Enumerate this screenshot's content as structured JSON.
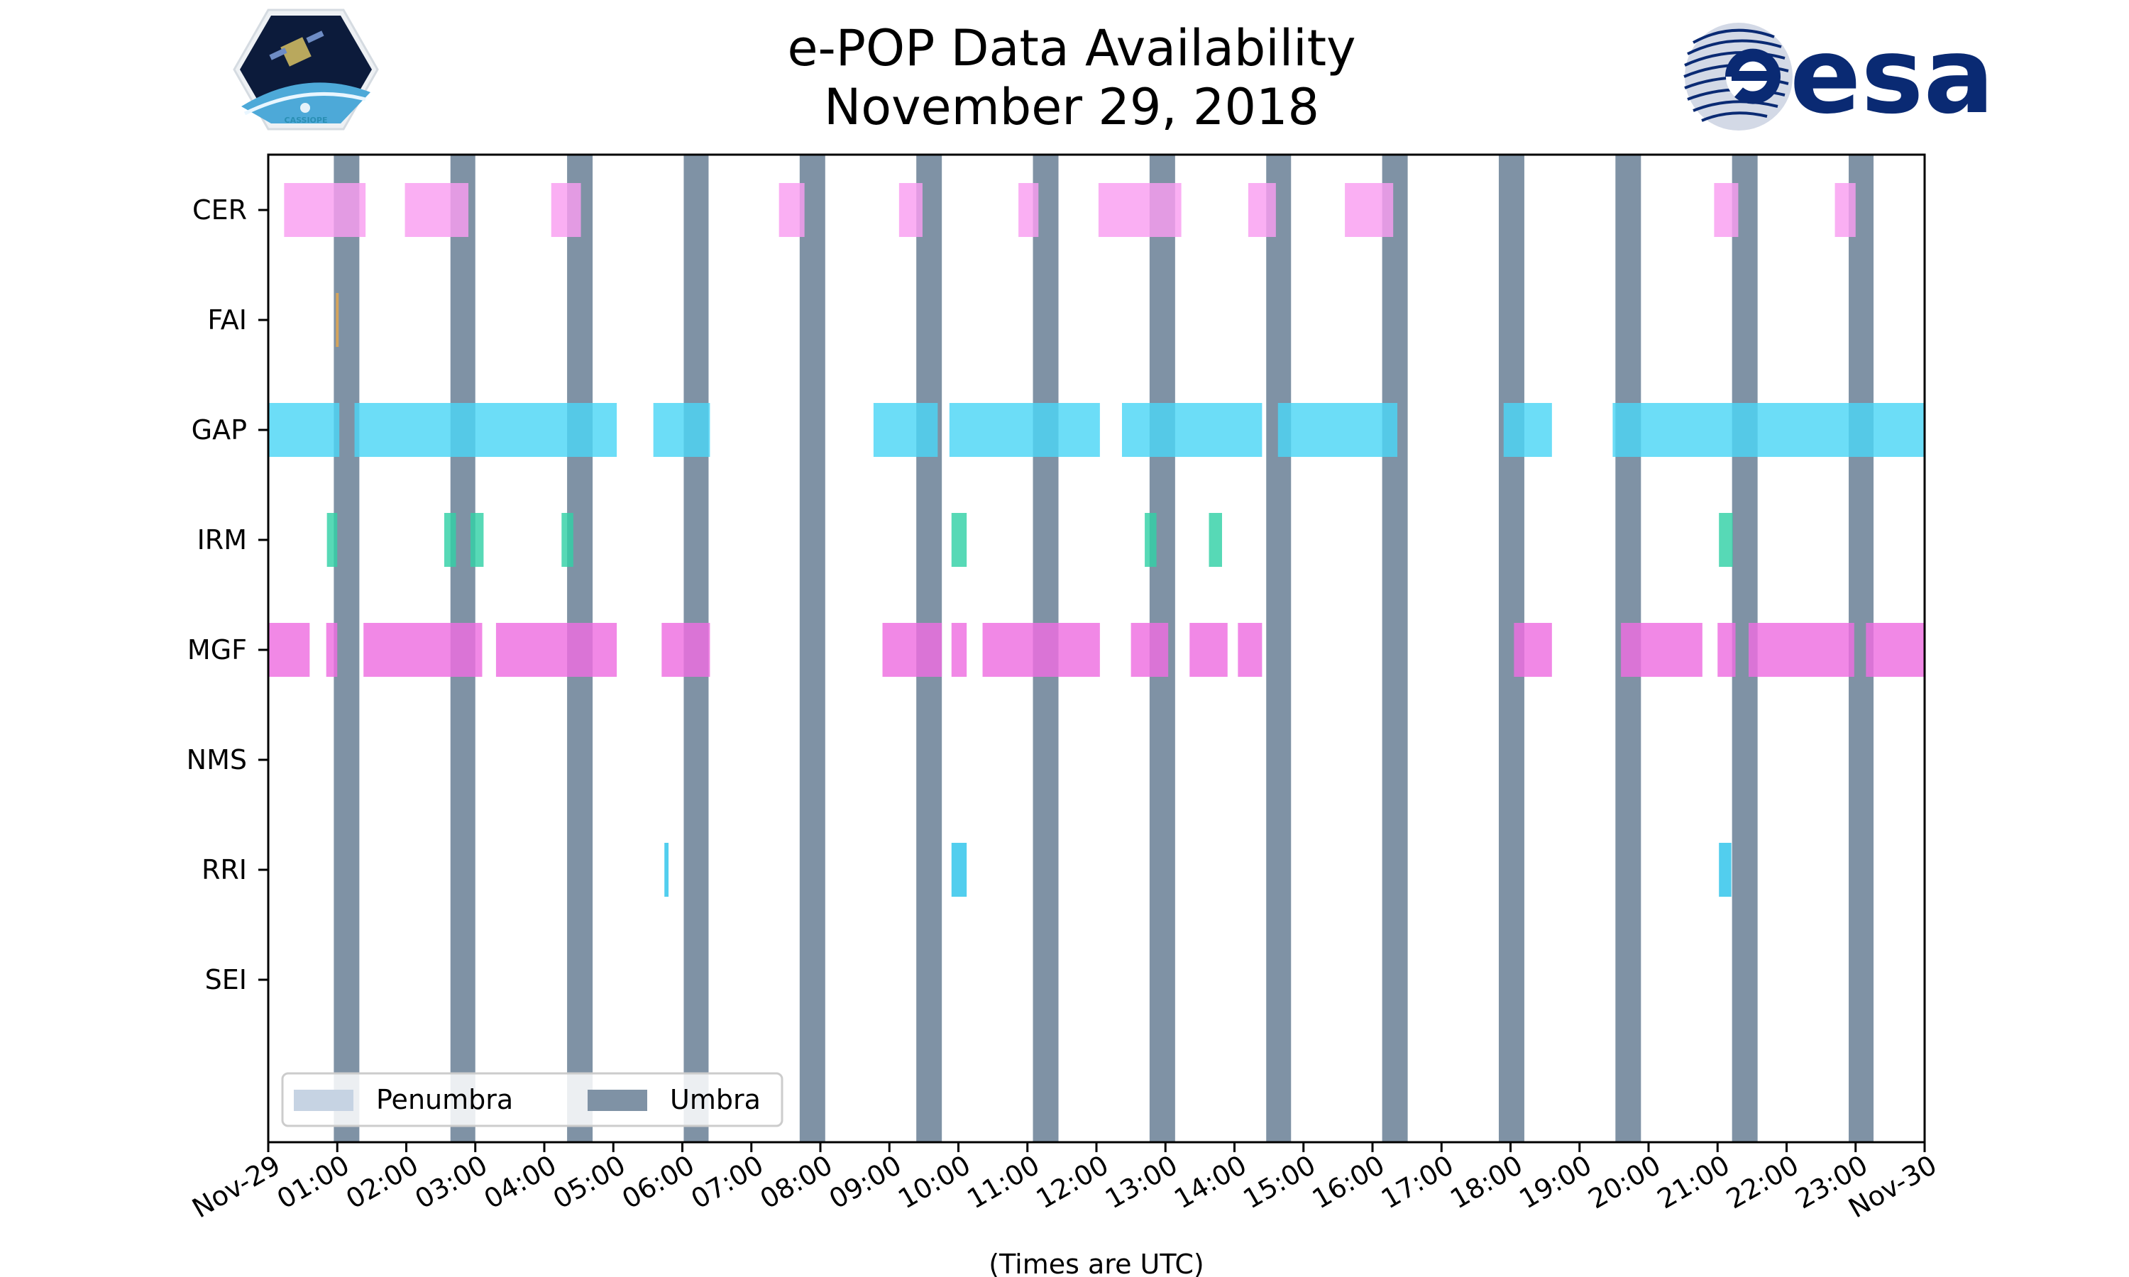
{
  "title_line1": "e-POP Data Availability",
  "title_line2": "November 29, 2018",
  "logos": {
    "left": {
      "icon": "cassiope-mission-logo-icon",
      "text": "CASSIOPE"
    },
    "right": {
      "icon": "esa-logo-icon",
      "text": "esa"
    }
  },
  "chart_data": {
    "type": "timeline",
    "xlabel": "(Times are UTC)",
    "x_unit": "hours UTC",
    "xlim": [
      0,
      24
    ],
    "x_ticks": [
      {
        "h": 0,
        "label": "Nov-29"
      },
      {
        "h": 1,
        "label": "01:00"
      },
      {
        "h": 2,
        "label": "02:00"
      },
      {
        "h": 3,
        "label": "03:00"
      },
      {
        "h": 4,
        "label": "04:00"
      },
      {
        "h": 5,
        "label": "05:00"
      },
      {
        "h": 6,
        "label": "06:00"
      },
      {
        "h": 7,
        "label": "07:00"
      },
      {
        "h": 8,
        "label": "08:00"
      },
      {
        "h": 9,
        "label": "09:00"
      },
      {
        "h": 10,
        "label": "10:00"
      },
      {
        "h": 11,
        "label": "11:00"
      },
      {
        "h": 12,
        "label": "12:00"
      },
      {
        "h": 13,
        "label": "13:00"
      },
      {
        "h": 14,
        "label": "14:00"
      },
      {
        "h": 15,
        "label": "15:00"
      },
      {
        "h": 16,
        "label": "16:00"
      },
      {
        "h": 17,
        "label": "17:00"
      },
      {
        "h": 18,
        "label": "18:00"
      },
      {
        "h": 19,
        "label": "19:00"
      },
      {
        "h": 20,
        "label": "20:00"
      },
      {
        "h": 21,
        "label": "21:00"
      },
      {
        "h": 22,
        "label": "22:00"
      },
      {
        "h": 23,
        "label": "23:00"
      },
      {
        "h": 24,
        "label": "Nov-30"
      }
    ],
    "umbra_intervals": [
      [
        0.95,
        1.32
      ],
      [
        2.64,
        3.0
      ],
      [
        4.33,
        4.7
      ],
      [
        6.02,
        6.38
      ],
      [
        7.7,
        8.07
      ],
      [
        9.39,
        9.76
      ],
      [
        11.08,
        11.45
      ],
      [
        12.77,
        13.14
      ],
      [
        14.46,
        14.82
      ],
      [
        16.14,
        16.51
      ],
      [
        17.83,
        18.2
      ],
      [
        19.52,
        19.89
      ],
      [
        21.21,
        21.58
      ],
      [
        22.9,
        23.26
      ]
    ],
    "penumbra_intervals": [],
    "legend": {
      "placement": "lower-left",
      "items": [
        {
          "key": "penumbra",
          "label": "Penumbra",
          "color": "#c6d3e3"
        },
        {
          "key": "umbra",
          "label": "Umbra",
          "color": "#7f92a5"
        }
      ]
    },
    "instruments": [
      {
        "name": "CER",
        "color": "#f99ef0",
        "intervals": [
          [
            0.23,
            1.41
          ],
          [
            1.98,
            2.9
          ],
          [
            4.1,
            4.53
          ],
          [
            7.4,
            7.77
          ],
          [
            9.14,
            9.48
          ],
          [
            10.87,
            11.16
          ],
          [
            12.03,
            13.23
          ],
          [
            14.2,
            14.6
          ],
          [
            15.6,
            16.3
          ],
          [
            20.95,
            21.3
          ],
          [
            22.7,
            23.0
          ]
        ]
      },
      {
        "name": "FAI",
        "color": "#e8a84a",
        "intervals": [
          [
            0.98,
            1.02
          ]
        ]
      },
      {
        "name": "GAP",
        "color": "#4cd6f5",
        "intervals": [
          [
            0.0,
            1.03
          ],
          [
            1.25,
            5.05
          ],
          [
            5.58,
            6.4
          ],
          [
            8.77,
            9.7
          ],
          [
            9.87,
            12.05
          ],
          [
            12.37,
            14.4
          ],
          [
            14.63,
            16.36
          ],
          [
            17.9,
            18.6
          ],
          [
            19.48,
            24.0
          ]
        ]
      },
      {
        "name": "IRM",
        "color": "#32d1a6",
        "intervals": [
          [
            0.85,
            1.0
          ],
          [
            2.55,
            2.72
          ],
          [
            2.93,
            3.12
          ],
          [
            4.25,
            4.42
          ],
          [
            9.9,
            10.12
          ],
          [
            12.7,
            12.87
          ],
          [
            13.63,
            13.82
          ],
          [
            21.02,
            21.22
          ]
        ]
      },
      {
        "name": "MGF",
        "color": "#ee6ee0",
        "intervals": [
          [
            0.0,
            0.6
          ],
          [
            0.84,
            1.0
          ],
          [
            1.38,
            3.1
          ],
          [
            3.3,
            5.05
          ],
          [
            5.7,
            6.4
          ],
          [
            8.9,
            9.76
          ],
          [
            9.9,
            10.12
          ],
          [
            10.35,
            12.05
          ],
          [
            12.5,
            13.04
          ],
          [
            13.35,
            13.9
          ],
          [
            14.05,
            14.4
          ],
          [
            18.05,
            18.6
          ],
          [
            19.6,
            20.78
          ],
          [
            21.0,
            21.26
          ],
          [
            21.45,
            22.98
          ],
          [
            23.15,
            24.0
          ]
        ]
      },
      {
        "name": "NMS",
        "color": "#4cd6f5",
        "intervals": []
      },
      {
        "name": "RRI",
        "color": "#2cc3ea",
        "intervals": [
          [
            5.74,
            5.8
          ],
          [
            9.9,
            10.12
          ],
          [
            21.02,
            21.2
          ]
        ]
      },
      {
        "name": "SEI",
        "color": "#4cd6f5",
        "intervals": []
      }
    ]
  }
}
